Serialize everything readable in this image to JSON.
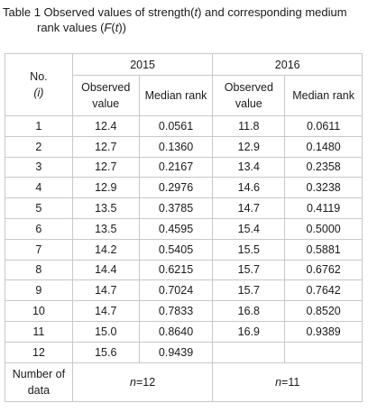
{
  "caption": {
    "prefix": "Table 1 Observed values of strength(",
    "var1": "t",
    "middle": ") and corresponding medium",
    "line2_prefix": "rank values (",
    "func": "F",
    "paren_open": "(",
    "var2": "t",
    "suffix": "))"
  },
  "header": {
    "no_label": "No.",
    "no_var": "(i)",
    "year_2015": "2015",
    "year_2016": "2016",
    "observed_value": "Observed value",
    "median_rank": "Median rank"
  },
  "rows": [
    {
      "no": "1",
      "o15": "12.4",
      "m15": "0.0561",
      "o16": "11.8",
      "m16": "0.0611"
    },
    {
      "no": "2",
      "o15": "12.7",
      "m15": "0.1360",
      "o16": "12.9",
      "m16": "0.1480"
    },
    {
      "no": "3",
      "o15": "12.7",
      "m15": "0.2167",
      "o16": "13.4",
      "m16": "0.2358"
    },
    {
      "no": "4",
      "o15": "12.9",
      "m15": "0.2976",
      "o16": "14.6",
      "m16": "0.3238"
    },
    {
      "no": "5",
      "o15": "13.5",
      "m15": "0.3785",
      "o16": "14.7",
      "m16": "0.4119"
    },
    {
      "no": "6",
      "o15": "13.5",
      "m15": "0.4595",
      "o16": "15.4",
      "m16": "0.5000"
    },
    {
      "no": "7",
      "o15": "14.2",
      "m15": "0.5405",
      "o16": "15.5",
      "m16": "0.5881"
    },
    {
      "no": "8",
      "o15": "14.4",
      "m15": "0.6215",
      "o16": "15.7",
      "m16": "0.6762"
    },
    {
      "no": "9",
      "o15": "14.7",
      "m15": "0.7024",
      "o16": "15.7",
      "m16": "0.7642"
    },
    {
      "no": "10",
      "o15": "14.7",
      "m15": "0.7833",
      "o16": "16.8",
      "m16": "0.8520"
    },
    {
      "no": "11",
      "o15": "15.0",
      "m15": "0.8640",
      "o16": "16.9",
      "m16": "0.9389"
    },
    {
      "no": "12",
      "o15": "15.6",
      "m15": "0.9439",
      "o16": "",
      "m16": ""
    }
  ],
  "footer": {
    "label": "Number of data",
    "n_var": "n",
    "n2015": "=12",
    "n2016": "=11"
  }
}
